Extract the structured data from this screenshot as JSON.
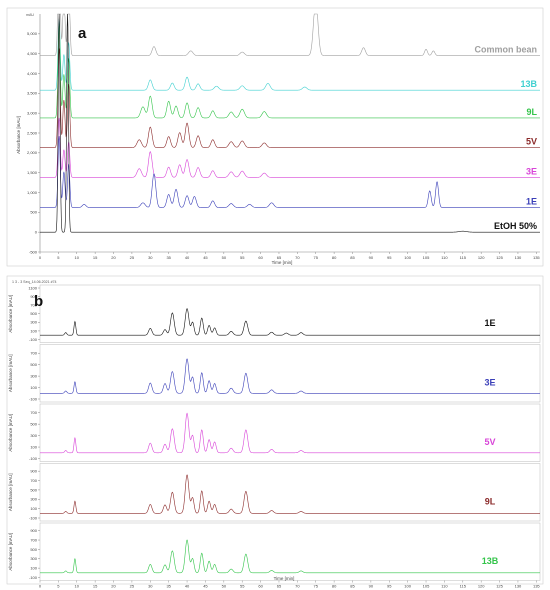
{
  "chart_data": [
    {
      "type": "line",
      "panel_label": "a",
      "xlabel": "Time [min]",
      "ylabel": "Absorbance [mAU]",
      "y_unit": "mAU",
      "xlim": [
        0,
        136
      ],
      "ylim": [
        -500,
        5500
      ],
      "x_ticks": [
        0,
        5,
        10,
        15,
        20,
        25,
        30,
        35,
        40,
        45,
        50,
        55,
        60,
        65,
        70,
        75,
        80,
        85,
        90,
        95,
        100,
        105,
        110,
        115,
        120,
        125,
        130,
        135
      ],
      "y_ticks": [
        -500,
        0,
        500,
        1000,
        1500,
        2000,
        2500,
        3000,
        3500,
        4000,
        4500,
        5000
      ],
      "y_tick_labels": [
        "-500",
        "0",
        "500",
        "1,000",
        "1,500",
        "2,000",
        "2,500",
        "3,000",
        "3,500",
        "4,000",
        "4,500",
        "5,000"
      ],
      "x_tick_labels": [
        "0",
        "5",
        "10",
        "15",
        "20",
        "25",
        "30",
        "35",
        "40",
        "45",
        "50",
        "55",
        "60",
        "65",
        "70",
        "75",
        "80",
        "85",
        "90",
        "95",
        "100",
        "105",
        "110",
        "115",
        "120",
        "125",
        "130",
        "135"
      ],
      "series": [
        {
          "name": "Common bean",
          "color": "#a0a0a0",
          "baseline": 4450,
          "peaks": [
            [
              5.2,
              3000,
              0.3
            ],
            [
              6.5,
              1600,
              0.3
            ],
            [
              7.8,
              2000,
              0.3
            ],
            [
              31,
              230,
              0.5
            ],
            [
              41,
              120,
              0.6
            ],
            [
              55,
              90,
              0.6
            ],
            [
              75,
              1400,
              0.6
            ],
            [
              88,
              200,
              0.5
            ],
            [
              105,
              160,
              0.4
            ],
            [
              107,
              120,
              0.4
            ]
          ]
        },
        {
          "name": "13B",
          "color": "#3fd0d0",
          "baseline": 3580,
          "peaks": [
            [
              5.2,
              1800,
              0.3
            ],
            [
              6.5,
              900,
              0.3
            ],
            [
              7.8,
              1200,
              0.3
            ],
            [
              30,
              260,
              0.5
            ],
            [
              36,
              180,
              0.5
            ],
            [
              40,
              330,
              0.5
            ],
            [
              43,
              160,
              0.5
            ],
            [
              48,
              100,
              0.6
            ],
            [
              55,
              110,
              0.6
            ],
            [
              62,
              170,
              0.6
            ],
            [
              72,
              80,
              0.6
            ]
          ]
        },
        {
          "name": "9L",
          "color": "#33c44a",
          "baseline": 2880,
          "peaks": [
            [
              5.2,
              2400,
              0.3
            ],
            [
              6.5,
              1100,
              0.3
            ],
            [
              7.8,
              1500,
              0.3
            ],
            [
              28,
              280,
              0.6
            ],
            [
              30,
              550,
              0.5
            ],
            [
              35,
              420,
              0.5
            ],
            [
              37,
              300,
              0.5
            ],
            [
              40,
              380,
              0.5
            ],
            [
              43,
              260,
              0.5
            ],
            [
              47,
              180,
              0.5
            ],
            [
              52,
              150,
              0.6
            ],
            [
              55,
              220,
              0.6
            ],
            [
              61,
              160,
              0.6
            ]
          ]
        },
        {
          "name": "5V",
          "color": "#8b2a2a",
          "baseline": 2130,
          "peaks": [
            [
              5.2,
              2500,
              0.3
            ],
            [
              6.5,
              1200,
              0.3
            ],
            [
              7.8,
              1600,
              0.3
            ],
            [
              27,
              200,
              0.6
            ],
            [
              30,
              520,
              0.5
            ],
            [
              35,
              280,
              0.5
            ],
            [
              38,
              380,
              0.5
            ],
            [
              40,
              620,
              0.5
            ],
            [
              43,
              300,
              0.5
            ],
            [
              47,
              200,
              0.5
            ],
            [
              52,
              150,
              0.6
            ],
            [
              55,
              170,
              0.6
            ],
            [
              61,
              120,
              0.6
            ]
          ]
        },
        {
          "name": "3E",
          "color": "#d845d8",
          "baseline": 1380,
          "peaks": [
            [
              5.2,
              1500,
              0.3
            ],
            [
              6.5,
              700,
              0.3
            ],
            [
              7.8,
              900,
              0.3
            ],
            [
              27,
              220,
              0.6
            ],
            [
              30,
              650,
              0.5
            ],
            [
              35,
              260,
              0.5
            ],
            [
              38,
              320,
              0.5
            ],
            [
              40,
              450,
              0.5
            ],
            [
              43,
              250,
              0.5
            ],
            [
              47,
              170,
              0.5
            ],
            [
              52,
              140,
              0.6
            ],
            [
              55,
              160,
              0.6
            ],
            [
              61,
              110,
              0.6
            ]
          ]
        },
        {
          "name": "1E",
          "color": "#3a3fb8",
          "baseline": 620,
          "peaks": [
            [
              5.2,
              1800,
              0.3
            ],
            [
              6.5,
              900,
              0.3
            ],
            [
              7.8,
              1100,
              0.3
            ],
            [
              12,
              80,
              0.5
            ],
            [
              28,
              120,
              0.6
            ],
            [
              31,
              850,
              0.5
            ],
            [
              35,
              330,
              0.5
            ],
            [
              37,
              460,
              0.5
            ],
            [
              40,
              300,
              0.5
            ],
            [
              42,
              280,
              0.5
            ],
            [
              47,
              170,
              0.5
            ],
            [
              52,
              100,
              0.6
            ],
            [
              57,
              80,
              0.6
            ],
            [
              63,
              120,
              0.6
            ],
            [
              106,
              420,
              0.4
            ],
            [
              108,
              650,
              0.4
            ]
          ]
        },
        {
          "name": "EtOH 50%",
          "color": "#111111",
          "baseline": 0,
          "peaks": [
            [
              5.2,
              5600,
              0.25
            ],
            [
              7.5,
              5600,
              0.25
            ],
            [
              115,
              25,
              1.0
            ]
          ]
        }
      ]
    },
    {
      "type": "line",
      "panel_label": "b",
      "xlabel": "Time [min]",
      "ylabel": "Absorbance [mAU]",
      "header_left": "1 3 - 3  Seq_14.06.2021 #74",
      "xlim": [
        0,
        136
      ],
      "x_ticks": [
        0,
        5,
        10,
        15,
        20,
        25,
        30,
        35,
        40,
        45,
        50,
        55,
        60,
        65,
        70,
        75,
        80,
        85,
        90,
        95,
        100,
        105,
        110,
        115,
        120,
        125,
        130,
        135
      ],
      "x_tick_labels": [
        "0",
        "5",
        "10",
        "15",
        "20",
        "25",
        "30",
        "35",
        "40",
        "45",
        "50",
        "55",
        "60",
        "65",
        "70",
        "75",
        "80",
        "85",
        "90",
        "95",
        "100",
        "105",
        "110",
        "115",
        "120",
        "125",
        "130",
        "135"
      ],
      "series": [
        {
          "name": "1E",
          "color": "#111111",
          "ylim": [
            -100,
            1100
          ],
          "y_ticks": [
            -100,
            100,
            300,
            500,
            700,
            900,
            1100
          ],
          "peaks": [
            [
              7,
              60,
              0.3
            ],
            [
              9.5,
              320,
              0.25
            ],
            [
              30,
              160,
              0.45
            ],
            [
              34,
              130,
              0.45
            ],
            [
              36,
              520,
              0.5
            ],
            [
              40,
              620,
              0.5
            ],
            [
              41.5,
              300,
              0.4
            ],
            [
              44,
              400,
              0.4
            ],
            [
              46,
              230,
              0.4
            ],
            [
              47.5,
              170,
              0.4
            ],
            [
              52,
              90,
              0.5
            ],
            [
              56,
              330,
              0.5
            ],
            [
              63,
              70,
              0.5
            ],
            [
              67,
              50,
              0.5
            ],
            [
              71,
              60,
              0.5
            ]
          ]
        },
        {
          "name": "3E",
          "color": "#3a3fb8",
          "ylim": [
            -100,
            800
          ],
          "y_ticks": [
            -100,
            100,
            300,
            500,
            700
          ],
          "peaks": [
            [
              7,
              40,
              0.3
            ],
            [
              9.5,
              200,
              0.25
            ],
            [
              30,
              180,
              0.45
            ],
            [
              34,
              170,
              0.45
            ],
            [
              36,
              380,
              0.5
            ],
            [
              40,
              600,
              0.5
            ],
            [
              41.5,
              280,
              0.4
            ],
            [
              44,
              360,
              0.4
            ],
            [
              46,
              220,
              0.4
            ],
            [
              47.5,
              170,
              0.4
            ],
            [
              52,
              90,
              0.5
            ],
            [
              56,
              350,
              0.5
            ],
            [
              63,
              60,
              0.5
            ],
            [
              71,
              40,
              0.5
            ]
          ]
        },
        {
          "name": "5V",
          "color": "#d845d8",
          "ylim": [
            -100,
            800
          ],
          "y_ticks": [
            -100,
            100,
            300,
            500,
            700
          ],
          "peaks": [
            [
              7,
              40,
              0.3
            ],
            [
              9.5,
              260,
              0.25
            ],
            [
              30,
              170,
              0.45
            ],
            [
              34,
              150,
              0.45
            ],
            [
              36,
              420,
              0.5
            ],
            [
              40,
              690,
              0.5
            ],
            [
              41.5,
              300,
              0.4
            ],
            [
              44,
              400,
              0.4
            ],
            [
              46,
              230,
              0.4
            ],
            [
              47.5,
              190,
              0.4
            ],
            [
              52,
              80,
              0.5
            ],
            [
              56,
              400,
              0.5
            ],
            [
              63,
              60,
              0.5
            ],
            [
              71,
              40,
              0.5
            ]
          ]
        },
        {
          "name": "9L",
          "color": "#8b2a2a",
          "ylim": [
            -100,
            1000
          ],
          "y_ticks": [
            -100,
            100,
            300,
            500,
            700,
            900
          ],
          "peaks": [
            [
              7,
              40,
              0.3
            ],
            [
              9.5,
              260,
              0.25
            ],
            [
              30,
              190,
              0.45
            ],
            [
              34,
              180,
              0.45
            ],
            [
              36,
              450,
              0.5
            ],
            [
              40,
              820,
              0.5
            ],
            [
              41.5,
              330,
              0.4
            ],
            [
              44,
              480,
              0.4
            ],
            [
              46,
              260,
              0.4
            ],
            [
              47.5,
              190,
              0.4
            ],
            [
              52,
              90,
              0.5
            ],
            [
              56,
              470,
              0.5
            ],
            [
              63,
              60,
              0.5
            ],
            [
              71,
              40,
              0.5
            ]
          ]
        },
        {
          "name": "13B",
          "color": "#33c44a",
          "ylim": [
            -100,
            1000
          ],
          "y_ticks": [
            -100,
            100,
            300,
            500,
            700,
            900
          ],
          "peaks": [
            [
              7,
              40,
              0.3
            ],
            [
              9.5,
              300,
              0.25
            ],
            [
              30,
              180,
              0.45
            ],
            [
              34,
              170,
              0.45
            ],
            [
              36,
              470,
              0.5
            ],
            [
              40,
              700,
              0.5
            ],
            [
              41.5,
              300,
              0.4
            ],
            [
              44,
              420,
              0.4
            ],
            [
              46,
              250,
              0.4
            ],
            [
              47.5,
              180,
              0.4
            ],
            [
              52,
              80,
              0.5
            ],
            [
              56,
              400,
              0.5
            ],
            [
              63,
              50,
              0.5
            ],
            [
              71,
              40,
              0.5
            ]
          ]
        }
      ]
    }
  ]
}
